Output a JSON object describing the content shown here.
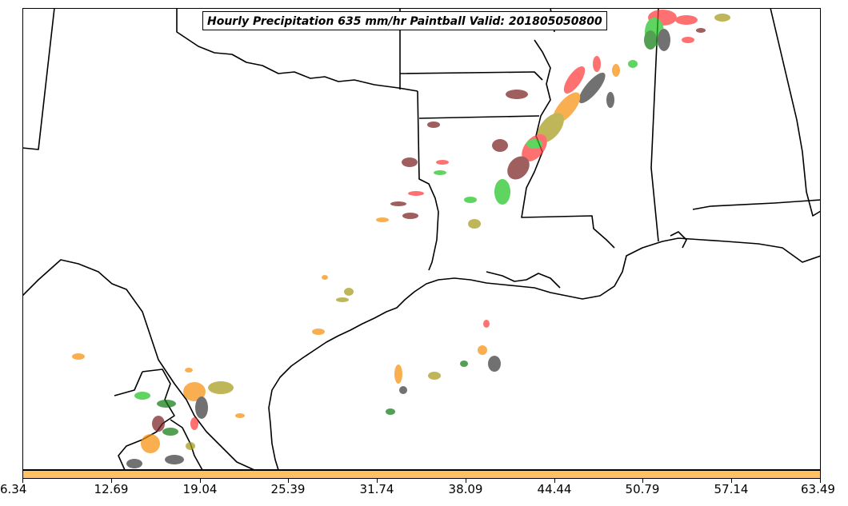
{
  "title": "Hourly Precipitation 635 mm/hr Paintball Valid: 201805050800",
  "colorbar": {
    "color": "#ffc161",
    "ticks": [
      "6.34",
      "12.69",
      "19.04",
      "25.39",
      "31.74",
      "38.09",
      "44.44",
      "50.79",
      "57.14",
      "63.49"
    ]
  },
  "paintball_colors": {
    "red": "#ff3a3a",
    "orange": "#f7900c",
    "green": "#22c422",
    "dark_green": "#107a10",
    "olive": "#a69a1a",
    "maroon": "#7a2020",
    "gray": "#3a3a3a"
  }
}
